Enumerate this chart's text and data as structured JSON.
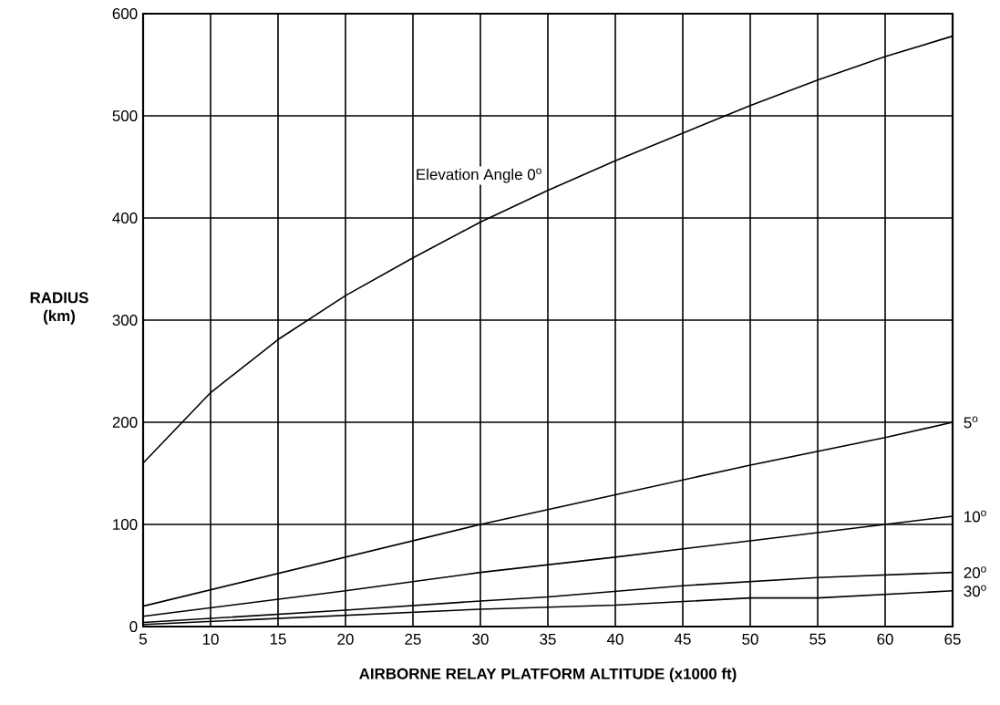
{
  "chart_data": {
    "type": "line",
    "xlabel": "AIRBORNE RELAY PLATFORM ALTITUDE (x1000 ft)",
    "ylabel": "RADIUS (km)",
    "xlim": [
      5,
      65
    ],
    "ylim": [
      0,
      600
    ],
    "xticks": [
      5,
      10,
      15,
      20,
      25,
      30,
      35,
      40,
      45,
      50,
      55,
      60,
      65
    ],
    "yticks": [
      0,
      100,
      200,
      300,
      400,
      500,
      600
    ],
    "grid": true,
    "legend": false,
    "marker": "none",
    "line_style": "solid",
    "series": [
      {
        "name": "Elevation Angle 0$^{o}$",
        "color": "#000000",
        "x": [
          5,
          10,
          15,
          20,
          25,
          30,
          35,
          40,
          45,
          50,
          55,
          60,
          65
        ],
        "values": [
          160,
          229,
          281,
          324,
          361,
          396,
          427,
          456,
          483,
          510,
          535,
          558,
          578
        ]
      },
      {
        "name": "5$^{o}$",
        "color": "#000000",
        "x": [
          5,
          30,
          40,
          50,
          60,
          65
        ],
        "values": [
          20,
          100,
          129,
          158,
          185,
          200
        ]
      },
      {
        "name": "10$^{o}$",
        "color": "#000000",
        "x": [
          5,
          20,
          30,
          40,
          50,
          60,
          65
        ],
        "values": [
          10,
          35,
          53,
          68,
          84,
          100,
          108
        ]
      },
      {
        "name": "20$^{o}$",
        "color": "#000000",
        "x": [
          5,
          20,
          30,
          35,
          45,
          55,
          65
        ],
        "values": [
          4,
          16,
          25,
          29,
          40,
          48,
          53
        ]
      },
      {
        "name": "30$^{o}$",
        "color": "#000000",
        "x": [
          5,
          30,
          40,
          50,
          55,
          65
        ],
        "values": [
          2,
          17,
          21,
          28,
          28,
          35
        ]
      }
    ]
  }
}
